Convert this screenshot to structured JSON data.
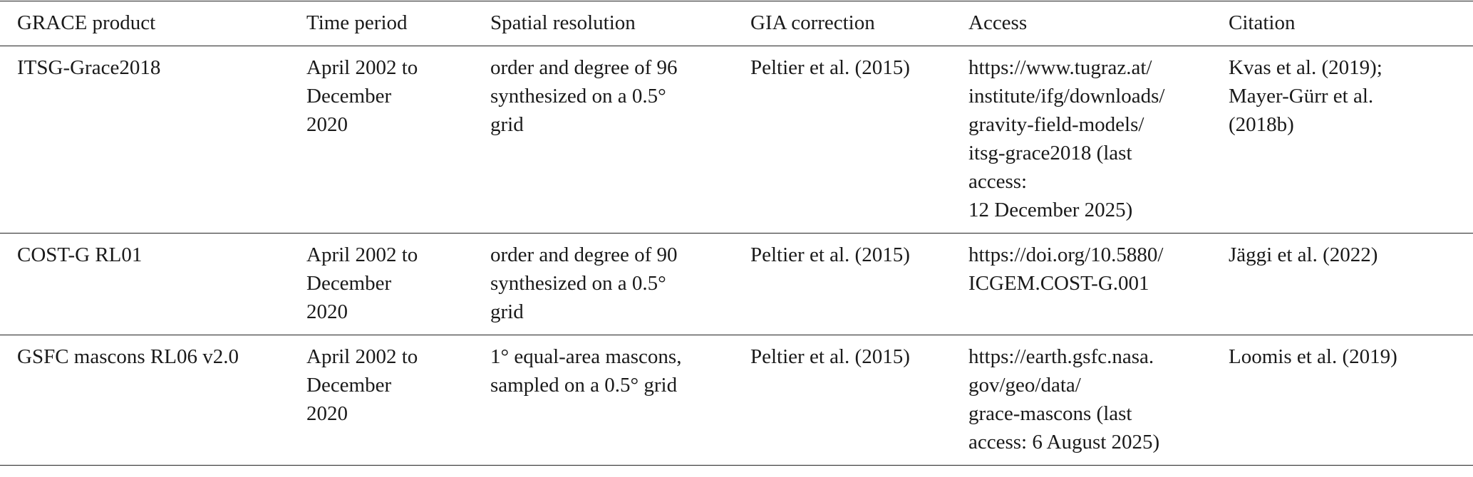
{
  "table": {
    "header": [
      "GRACE product",
      "Time period",
      "Spatial resolution",
      "GIA correction",
      "Access",
      "Citation"
    ],
    "rows": [
      [
        [
          "ITSG-Grace2018"
        ],
        [
          "April 2002 to",
          "December",
          "2020"
        ],
        [
          "order and degree of 96",
          "synthesized on a 0.5°",
          "grid"
        ],
        [
          "Peltier et al. (2015)"
        ],
        [
          "https://www.tugraz.at/",
          "institute/ifg/downloads/",
          "gravity-field-models/",
          "itsg-grace2018 (last",
          "access:",
          "12 December 2025)"
        ],
        [
          "Kvas et al. (2019);",
          "Mayer-Gürr et al.",
          "(2018b)"
        ]
      ],
      [
        [
          "COST-G RL01"
        ],
        [
          "April 2002 to",
          "December",
          "2020"
        ],
        [
          "order and degree of 90",
          "synthesized on a 0.5°",
          "grid"
        ],
        [
          "Peltier et al. (2015)"
        ],
        [
          "https://doi.org/10.5880/",
          "ICGEM.COST-G.001"
        ],
        [
          "Jäggi et al. (2022)"
        ]
      ],
      [
        [
          "GSFC mascons RL06 v2.0"
        ],
        [
          "April 2002 to",
          "December",
          "2020"
        ],
        [
          "1° equal-area mascons,",
          "sampled on a 0.5° grid"
        ],
        [
          "Peltier et al. (2015)"
        ],
        [
          "https://earth.gsfc.nasa.",
          "gov/geo/data/",
          "grace-mascons (last",
          "access: 6 August 2025)"
        ],
        [
          "Loomis et al. (2019)"
        ]
      ]
    ]
  }
}
